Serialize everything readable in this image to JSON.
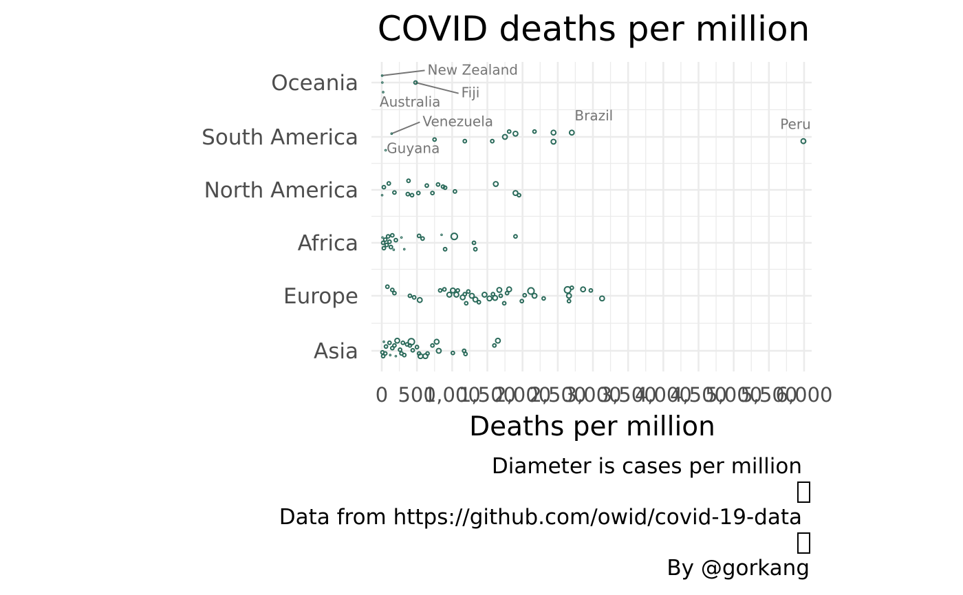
{
  "chart_data": {
    "type": "scatter",
    "title": "COVID deaths per million",
    "xlabel": "Deaths per million",
    "ylabel": "",
    "xlim": [
      0,
      6000
    ],
    "x_ticks": [
      0,
      500,
      1000,
      1500,
      2000,
      2500,
      3000,
      3500,
      4000,
      4500,
      5000,
      5500,
      6000
    ],
    "x_tick_labels": [
      "0",
      "500",
      "1,000",
      "1,500",
      "2,000",
      "2,500",
      "3,000",
      "3,500",
      "4,000",
      "4,500",
      "5,000",
      "5,500",
      "6,000"
    ],
    "categories": [
      "Oceania",
      "South America",
      "North America",
      "Africa",
      "Europe",
      "Asia"
    ],
    "grid": true,
    "point_color": "#2a6a5a",
    "annotation_color": "#757575",
    "caption_lines": [
      "Diameter is cases per million",
      "Data from https://github.com/owid/covid-19-data",
      "By @gorkang"
    ],
    "caption_glyph": " ",
    "points": [
      {
        "continent": "Oceania",
        "x": 5,
        "y_offset": 0.13,
        "size": 1,
        "label": "New Zealand"
      },
      {
        "continent": "Oceania",
        "x": 480,
        "y_offset": 0.0,
        "size": 2,
        "label": "Fiji"
      },
      {
        "continent": "Oceania",
        "x": 8,
        "y_offset": 0.0,
        "size": 1
      },
      {
        "continent": "Oceania",
        "x": 20,
        "y_offset": -0.18,
        "size": 1,
        "label": "Australia"
      },
      {
        "continent": "South America",
        "x": 140,
        "y_offset": 0.06,
        "size": 1,
        "label": "Venezuela"
      },
      {
        "continent": "South America",
        "x": 55,
        "y_offset": -0.25,
        "size": 1,
        "label": "Guyana"
      },
      {
        "continent": "South America",
        "x": 2440,
        "y_offset": 0.08,
        "size": 3,
        "label": "Brazil"
      },
      {
        "continent": "South America",
        "x": 5990,
        "y_offset": -0.08,
        "size": 3,
        "label": "Peru"
      },
      {
        "continent": "South America",
        "x": 750,
        "y_offset": -0.05,
        "size": 2
      },
      {
        "continent": "South America",
        "x": 1180,
        "y_offset": -0.08,
        "size": 2
      },
      {
        "continent": "South America",
        "x": 1570,
        "y_offset": -0.08,
        "size": 2
      },
      {
        "continent": "South America",
        "x": 1750,
        "y_offset": 0.0,
        "size": 3
      },
      {
        "continent": "South America",
        "x": 1810,
        "y_offset": 0.1,
        "size": 2
      },
      {
        "continent": "South America",
        "x": 1900,
        "y_offset": 0.06,
        "size": 3
      },
      {
        "continent": "South America",
        "x": 2170,
        "y_offset": 0.1,
        "size": 2
      },
      {
        "continent": "South America",
        "x": 2440,
        "y_offset": -0.09,
        "size": 3
      },
      {
        "continent": "South America",
        "x": 2700,
        "y_offset": 0.08,
        "size": 3
      },
      {
        "continent": "North America",
        "x": 5,
        "y_offset": -0.1,
        "size": 1
      },
      {
        "continent": "North America",
        "x": 30,
        "y_offset": 0.05,
        "size": 2
      },
      {
        "continent": "North America",
        "x": 100,
        "y_offset": 0.12,
        "size": 2
      },
      {
        "continent": "North America",
        "x": 180,
        "y_offset": -0.05,
        "size": 2
      },
      {
        "continent": "North America",
        "x": 380,
        "y_offset": 0.17,
        "size": 2
      },
      {
        "continent": "North America",
        "x": 370,
        "y_offset": -0.08,
        "size": 2
      },
      {
        "continent": "North America",
        "x": 430,
        "y_offset": -0.1,
        "size": 2
      },
      {
        "continent": "North America",
        "x": 520,
        "y_offset": -0.06,
        "size": 2
      },
      {
        "continent": "North America",
        "x": 640,
        "y_offset": 0.08,
        "size": 2
      },
      {
        "continent": "North America",
        "x": 720,
        "y_offset": -0.06,
        "size": 2
      },
      {
        "continent": "North America",
        "x": 800,
        "y_offset": 0.1,
        "size": 2
      },
      {
        "continent": "North America",
        "x": 870,
        "y_offset": 0.06,
        "size": 2
      },
      {
        "continent": "North America",
        "x": 900,
        "y_offset": 0.04,
        "size": 2
      },
      {
        "continent": "North America",
        "x": 1040,
        "y_offset": -0.03,
        "size": 2
      },
      {
        "continent": "North America",
        "x": 1620,
        "y_offset": 0.11,
        "size": 3
      },
      {
        "continent": "North America",
        "x": 1900,
        "y_offset": -0.06,
        "size": 3
      },
      {
        "continent": "North America",
        "x": 1950,
        "y_offset": -0.1,
        "size": 2
      },
      {
        "continent": "Africa",
        "x": 10,
        "y_offset": 0.1,
        "size": 1
      },
      {
        "continent": "Africa",
        "x": 20,
        "y_offset": 0.0,
        "size": 2
      },
      {
        "continent": "Africa",
        "x": 30,
        "y_offset": -0.1,
        "size": 2
      },
      {
        "continent": "Africa",
        "x": 50,
        "y_offset": 0.06,
        "size": 2
      },
      {
        "continent": "Africa",
        "x": 70,
        "y_offset": -0.04,
        "size": 2
      },
      {
        "continent": "Africa",
        "x": 90,
        "y_offset": 0.12,
        "size": 2
      },
      {
        "continent": "Africa",
        "x": 110,
        "y_offset": 0.02,
        "size": 2
      },
      {
        "continent": "Africa",
        "x": 130,
        "y_offset": -0.08,
        "size": 2
      },
      {
        "continent": "Africa",
        "x": 150,
        "y_offset": 0.14,
        "size": 2
      },
      {
        "continent": "Africa",
        "x": 170,
        "y_offset": -0.13,
        "size": 1
      },
      {
        "continent": "Africa",
        "x": 200,
        "y_offset": 0.05,
        "size": 2
      },
      {
        "continent": "Africa",
        "x": 280,
        "y_offset": 0.1,
        "size": 1
      },
      {
        "continent": "Africa",
        "x": 320,
        "y_offset": -0.12,
        "size": 1
      },
      {
        "continent": "Africa",
        "x": 530,
        "y_offset": 0.13,
        "size": 2
      },
      {
        "continent": "Africa",
        "x": 580,
        "y_offset": 0.08,
        "size": 2
      },
      {
        "continent": "Africa",
        "x": 850,
        "y_offset": 0.15,
        "size": 1
      },
      {
        "continent": "Africa",
        "x": 900,
        "y_offset": -0.12,
        "size": 2
      },
      {
        "continent": "Africa",
        "x": 1030,
        "y_offset": 0.12,
        "size": 4
      },
      {
        "continent": "Africa",
        "x": 1310,
        "y_offset": 0.0,
        "size": 2
      },
      {
        "continent": "Africa",
        "x": 1330,
        "y_offset": -0.12,
        "size": 2
      },
      {
        "continent": "Africa",
        "x": 1900,
        "y_offset": 0.12,
        "size": 2
      },
      {
        "continent": "Europe",
        "x": 80,
        "y_offset": 0.17,
        "size": 2
      },
      {
        "continent": "Europe",
        "x": 150,
        "y_offset": 0.11,
        "size": 2
      },
      {
        "continent": "Europe",
        "x": 180,
        "y_offset": 0.05,
        "size": 2
      },
      {
        "continent": "Europe",
        "x": 400,
        "y_offset": 0.0,
        "size": 2
      },
      {
        "continent": "Europe",
        "x": 460,
        "y_offset": -0.03,
        "size": 2
      },
      {
        "continent": "Europe",
        "x": 540,
        "y_offset": -0.08,
        "size": 3
      },
      {
        "continent": "Europe",
        "x": 830,
        "y_offset": 0.1,
        "size": 2
      },
      {
        "continent": "Europe",
        "x": 890,
        "y_offset": 0.12,
        "size": 2
      },
      {
        "continent": "Europe",
        "x": 960,
        "y_offset": 0.02,
        "size": 3
      },
      {
        "continent": "Europe",
        "x": 1010,
        "y_offset": 0.1,
        "size": 3
      },
      {
        "continent": "Europe",
        "x": 1060,
        "y_offset": 0.02,
        "size": 3
      },
      {
        "continent": "Europe",
        "x": 1080,
        "y_offset": 0.1,
        "size": 2
      },
      {
        "continent": "Europe",
        "x": 1150,
        "y_offset": -0.03,
        "size": 3
      },
      {
        "continent": "Europe",
        "x": 1180,
        "y_offset": 0.03,
        "size": 2
      },
      {
        "continent": "Europe",
        "x": 1230,
        "y_offset": 0.08,
        "size": 2
      },
      {
        "continent": "Europe",
        "x": 1200,
        "y_offset": -0.14,
        "size": 2
      },
      {
        "continent": "Europe",
        "x": 1280,
        "y_offset": 0.0,
        "size": 3
      },
      {
        "continent": "Europe",
        "x": 1330,
        "y_offset": -0.07,
        "size": 3
      },
      {
        "continent": "Europe",
        "x": 1380,
        "y_offset": -0.12,
        "size": 2
      },
      {
        "continent": "Europe",
        "x": 1460,
        "y_offset": 0.02,
        "size": 3
      },
      {
        "continent": "Europe",
        "x": 1530,
        "y_offset": -0.05,
        "size": 3
      },
      {
        "continent": "Europe",
        "x": 1580,
        "y_offset": 0.03,
        "size": 2
      },
      {
        "continent": "Europe",
        "x": 1610,
        "y_offset": -0.04,
        "size": 3
      },
      {
        "continent": "Europe",
        "x": 1670,
        "y_offset": 0.11,
        "size": 3
      },
      {
        "continent": "Europe",
        "x": 1690,
        "y_offset": 0.0,
        "size": 2
      },
      {
        "continent": "Europe",
        "x": 1740,
        "y_offset": -0.14,
        "size": 2
      },
      {
        "continent": "Europe",
        "x": 1780,
        "y_offset": 0.05,
        "size": 2
      },
      {
        "continent": "Europe",
        "x": 1810,
        "y_offset": 0.12,
        "size": 3
      },
      {
        "continent": "Europe",
        "x": 1990,
        "y_offset": -0.1,
        "size": 2
      },
      {
        "continent": "Europe",
        "x": 2030,
        "y_offset": 0.01,
        "size": 2
      },
      {
        "continent": "Europe",
        "x": 2120,
        "y_offset": 0.09,
        "size": 4
      },
      {
        "continent": "Europe",
        "x": 2170,
        "y_offset": 0.0,
        "size": 3
      },
      {
        "continent": "Europe",
        "x": 2300,
        "y_offset": -0.05,
        "size": 2
      },
      {
        "continent": "Europe",
        "x": 2640,
        "y_offset": 0.11,
        "size": 4
      },
      {
        "continent": "Europe",
        "x": 2700,
        "y_offset": 0.15,
        "size": 2
      },
      {
        "continent": "Europe",
        "x": 2660,
        "y_offset": 0.0,
        "size": 3
      },
      {
        "continent": "Europe",
        "x": 2660,
        "y_offset": -0.1,
        "size": 2
      },
      {
        "continent": "Europe",
        "x": 2860,
        "y_offset": 0.12,
        "size": 3
      },
      {
        "continent": "Europe",
        "x": 2970,
        "y_offset": 0.1,
        "size": 2
      },
      {
        "continent": "Europe",
        "x": 3130,
        "y_offset": -0.05,
        "size": 3
      },
      {
        "continent": "Asia",
        "x": 10,
        "y_offset": -0.03,
        "size": 2
      },
      {
        "continent": "Asia",
        "x": 20,
        "y_offset": -0.1,
        "size": 2
      },
      {
        "continent": "Asia",
        "x": 30,
        "y_offset": 0.17,
        "size": 1
      },
      {
        "continent": "Asia",
        "x": 50,
        "y_offset": -0.05,
        "size": 2
      },
      {
        "continent": "Asia",
        "x": 60,
        "y_offset": 0.08,
        "size": 2
      },
      {
        "continent": "Asia",
        "x": 110,
        "y_offset": 0.15,
        "size": 2
      },
      {
        "continent": "Asia",
        "x": 120,
        "y_offset": -0.08,
        "size": 1
      },
      {
        "continent": "Asia",
        "x": 150,
        "y_offset": 0.05,
        "size": 2
      },
      {
        "continent": "Asia",
        "x": 180,
        "y_offset": 0.1,
        "size": 2
      },
      {
        "continent": "Asia",
        "x": 200,
        "y_offset": -0.1,
        "size": 1
      },
      {
        "continent": "Asia",
        "x": 220,
        "y_offset": 0.19,
        "size": 3
      },
      {
        "continent": "Asia",
        "x": 260,
        "y_offset": 0.02,
        "size": 2
      },
      {
        "continent": "Asia",
        "x": 280,
        "y_offset": -0.05,
        "size": 2
      },
      {
        "continent": "Asia",
        "x": 300,
        "y_offset": 0.15,
        "size": 2
      },
      {
        "continent": "Asia",
        "x": 320,
        "y_offset": -0.08,
        "size": 2
      },
      {
        "continent": "Asia",
        "x": 360,
        "y_offset": 0.12,
        "size": 2
      },
      {
        "continent": "Asia",
        "x": 400,
        "y_offset": 0.1,
        "size": 2
      },
      {
        "continent": "Asia",
        "x": 420,
        "y_offset": 0.17,
        "size": 4
      },
      {
        "continent": "Asia",
        "x": 440,
        "y_offset": 0.01,
        "size": 2
      },
      {
        "continent": "Asia",
        "x": 500,
        "y_offset": 0.07,
        "size": 2
      },
      {
        "continent": "Asia",
        "x": 530,
        "y_offset": -0.05,
        "size": 2
      },
      {
        "continent": "Asia",
        "x": 550,
        "y_offset": -0.1,
        "size": 3
      },
      {
        "continent": "Asia",
        "x": 620,
        "y_offset": -0.1,
        "size": 3
      },
      {
        "continent": "Asia",
        "x": 650,
        "y_offset": -0.05,
        "size": 2
      },
      {
        "continent": "Asia",
        "x": 720,
        "y_offset": 0.1,
        "size": 2
      },
      {
        "continent": "Asia",
        "x": 780,
        "y_offset": 0.17,
        "size": 3
      },
      {
        "continent": "Asia",
        "x": 810,
        "y_offset": 0.0,
        "size": 3
      },
      {
        "continent": "Asia",
        "x": 1010,
        "y_offset": -0.04,
        "size": 2
      },
      {
        "continent": "Asia",
        "x": 1170,
        "y_offset": 0.0,
        "size": 2
      },
      {
        "continent": "Asia",
        "x": 1190,
        "y_offset": -0.06,
        "size": 2
      },
      {
        "continent": "Asia",
        "x": 1600,
        "y_offset": 0.1,
        "size": 2
      },
      {
        "continent": "Asia",
        "x": 1650,
        "y_offset": 0.19,
        "size": 3
      }
    ],
    "annotations": [
      {
        "label": "New Zealand",
        "continent": "Oceania",
        "x": 5,
        "y_offset": 0.13,
        "text_x": 650,
        "text_y_offset": 0.15,
        "anchor": "start",
        "leader": true
      },
      {
        "label": "Fiji",
        "continent": "Oceania",
        "x": 480,
        "y_offset": 0.0,
        "text_x": 1130,
        "text_y_offset": -0.28,
        "anchor": "start",
        "leader": true
      },
      {
        "label": "Australia",
        "continent": "Oceania",
        "x": 20,
        "y_offset": -0.18,
        "text_x": -30,
        "text_y_offset": -0.45,
        "anchor": "start",
        "leader": false
      },
      {
        "label": "Venezuela",
        "continent": "South America",
        "x": 140,
        "y_offset": 0.06,
        "text_x": 580,
        "text_y_offset": 0.2,
        "anchor": "start",
        "leader": true
      },
      {
        "label": "Guyana",
        "continent": "South America",
        "x": 55,
        "y_offset": -0.25,
        "text_x": 70,
        "text_y_offset": -0.3,
        "anchor": "start",
        "leader": false
      },
      {
        "label": "Brazil",
        "continent": "South America",
        "x": 2440,
        "y_offset": 0.08,
        "text_x": 2740,
        "text_y_offset": 0.31,
        "anchor": "start",
        "leader": false
      },
      {
        "label": "Peru",
        "continent": "South America",
        "x": 5990,
        "y_offset": -0.08,
        "text_x": 5660,
        "text_y_offset": 0.15,
        "anchor": "start",
        "leader": false
      }
    ]
  }
}
